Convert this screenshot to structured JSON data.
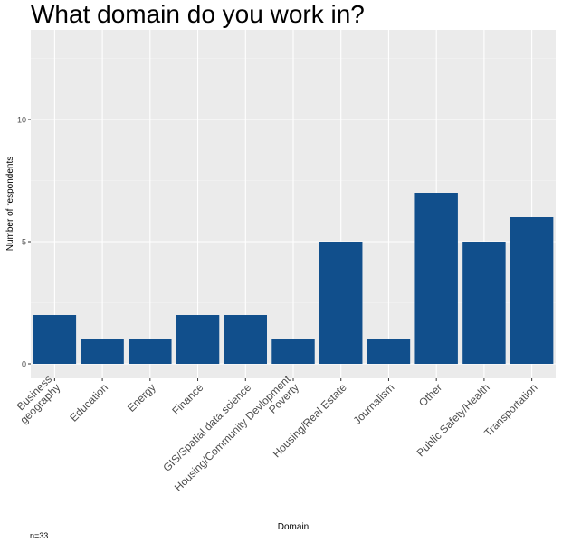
{
  "chart_data": {
    "type": "bar",
    "title": "What domain do you work in?",
    "xlabel": "Domain",
    "ylabel": "Number of respondents",
    "caption": "n=33",
    "categories": [
      "Business geography",
      "Education",
      "Energy",
      "Finance",
      "GIS/Spatial data science",
      "Housing/Community Devlopment Poverty",
      "Housing/Real Estate",
      "Journalism",
      "Other",
      "Public Safety/Health",
      "Transportation"
    ],
    "category_lines": [
      [
        "Business",
        "geography"
      ],
      [
        "Education"
      ],
      [
        "Energy"
      ],
      [
        "Finance"
      ],
      [
        "GIS/Spatial data science"
      ],
      [
        "Housing/Community Devlopment",
        "Poverty"
      ],
      [
        "Housing/Real Estate"
      ],
      [
        "Journalism"
      ],
      [
        "Other"
      ],
      [
        "Public Safety/Health"
      ],
      [
        "Transportation"
      ]
    ],
    "values": [
      2,
      1,
      1,
      2,
      2,
      1,
      5,
      1,
      7,
      5,
      6
    ],
    "yticks": [
      0,
      5,
      10
    ],
    "ylim": [
      0,
      13
    ],
    "grid": true,
    "legend": "none",
    "colors": {
      "bar": "#114f8c",
      "panel": "#ebebeb",
      "grid_major": "#ffffff",
      "grid_minor": "#f5f5f5",
      "tick_text": "#4d4d4d",
      "axis_title": "#000000"
    }
  }
}
